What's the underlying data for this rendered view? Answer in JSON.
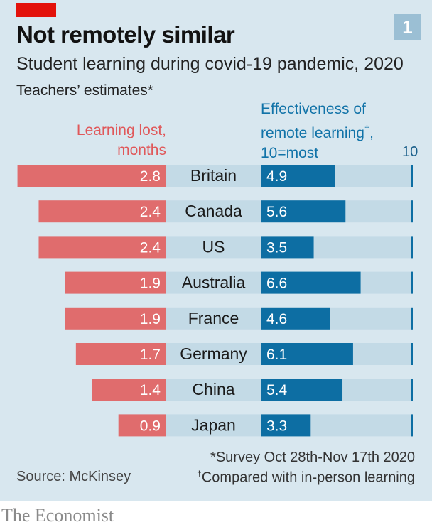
{
  "badge": "1",
  "brand": "The Economist",
  "colors": {
    "panel": "#d8e7ef",
    "red": "#e06c6d",
    "blue": "#0d6ea3",
    "track": "#c3dae6",
    "tag": "#e3120b"
  },
  "chart_data": {
    "type": "bar",
    "title": "Not remotely similar",
    "subtitle": "Student learning during covid-19 pandemic, 2020",
    "note": "Teachers’ estimates*",
    "categories": [
      "Britain",
      "Canada",
      "US",
      "Australia",
      "France",
      "Germany",
      "China",
      "Japan"
    ],
    "series": [
      {
        "name": "Learning lost, months",
        "label_lines": [
          "Learning lost,",
          "months"
        ],
        "values": [
          2.8,
          2.4,
          2.4,
          1.9,
          1.9,
          1.7,
          1.4,
          0.9
        ],
        "labels": [
          "2.8",
          "2.4",
          "2.4",
          "1.9",
          "1.9",
          "1.7",
          "1.4",
          "0.9"
        ]
      },
      {
        "name": "Effectiveness of remote learning†, 10=most",
        "label_lines": [
          "Effectiveness of",
          "remote learning",
          "†",
          ",",
          "10=most"
        ],
        "values": [
          4.9,
          5.6,
          3.5,
          6.6,
          4.6,
          6.1,
          5.4,
          3.3
        ],
        "labels": [
          "4.9",
          "5.6",
          "3.5",
          "6.6",
          "4.6",
          "6.1",
          "5.4",
          "3.3"
        ]
      }
    ],
    "xlim_effectiveness": [
      0,
      10
    ],
    "axis_max_label": "10",
    "source": "Source: McKinsey",
    "footnotes": [
      "*Survey Oct 28th-Nov 17th 2020",
      "†",
      "Compared with in-person learning"
    ]
  }
}
